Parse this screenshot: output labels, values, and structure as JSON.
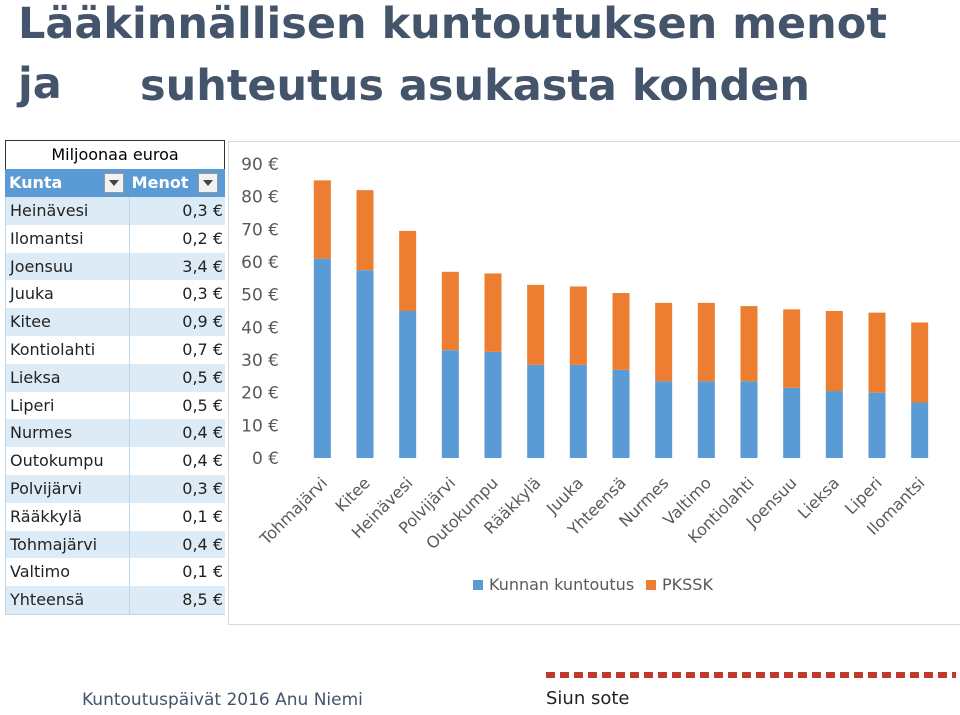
{
  "title": {
    "line1": "Lääkinnällisen kuntoutuksen menot ja",
    "line2": "suhteutus asukasta kohden"
  },
  "table": {
    "unit": "Miljoonaa euroa",
    "col1": "Kunta",
    "col2": "Menot",
    "rows": [
      {
        "kunta": "Heinävesi",
        "menot": "0,3 €"
      },
      {
        "kunta": "Ilomantsi",
        "menot": "0,2 €"
      },
      {
        "kunta": "Joensuu",
        "menot": "3,4 €"
      },
      {
        "kunta": "Juuka",
        "menot": "0,3 €"
      },
      {
        "kunta": "Kitee",
        "menot": "0,9 €"
      },
      {
        "kunta": "Kontiolahti",
        "menot": "0,7 €"
      },
      {
        "kunta": "Lieksa",
        "menot": "0,5 €"
      },
      {
        "kunta": "Liperi",
        "menot": "0,5 €"
      },
      {
        "kunta": "Nurmes",
        "menot": "0,4 €"
      },
      {
        "kunta": "Outokumpu",
        "menot": "0,4 €"
      },
      {
        "kunta": "Polvijärvi",
        "menot": "0,3 €"
      },
      {
        "kunta": "Rääkkylä",
        "menot": "0,1 €"
      },
      {
        "kunta": "Tohmajärvi",
        "menot": "0,4 €"
      },
      {
        "kunta": "Valtimo",
        "menot": "0,1 €"
      },
      {
        "kunta": "Yhteensä",
        "menot": "8,5 €"
      }
    ]
  },
  "chart_data": {
    "type": "bar",
    "stacked": true,
    "categories": [
      "Tohmajärvi",
      "Kitee",
      "Heinävesi",
      "Polvijärvi",
      "Outokumpu",
      "Rääkkylä",
      "Juuka",
      "Yhteensä",
      "Nurmes",
      "Valtimo",
      "Kontiolahti",
      "Joensuu",
      "Lieksa",
      "Liperi",
      "Ilomantsi"
    ],
    "series": [
      {
        "name": "Kunnan kuntoutus",
        "color": "#5b9bd5",
        "values": [
          61,
          57.5,
          45,
          33,
          32.5,
          28.5,
          28.5,
          27,
          23.5,
          23.5,
          23.5,
          21.5,
          20.5,
          20,
          17
        ]
      },
      {
        "name": "PKSSK",
        "color": "#ed7d31",
        "values": [
          24,
          24.5,
          24.5,
          24,
          24,
          24.5,
          24,
          23.5,
          24,
          24,
          23,
          24,
          24.5,
          24.5,
          24.5
        ]
      }
    ],
    "yticks": [
      "0 €",
      "10 €",
      "20 €",
      "30 €",
      "40 €",
      "50 €",
      "60 €",
      "70 €",
      "80 €",
      "90 €"
    ],
    "ylim": [
      0,
      90
    ],
    "legend_position": "bottom"
  },
  "footer": {
    "left": "Kuntoutuspäivät 2016 Anu Niemi",
    "right": "Siun sote"
  }
}
